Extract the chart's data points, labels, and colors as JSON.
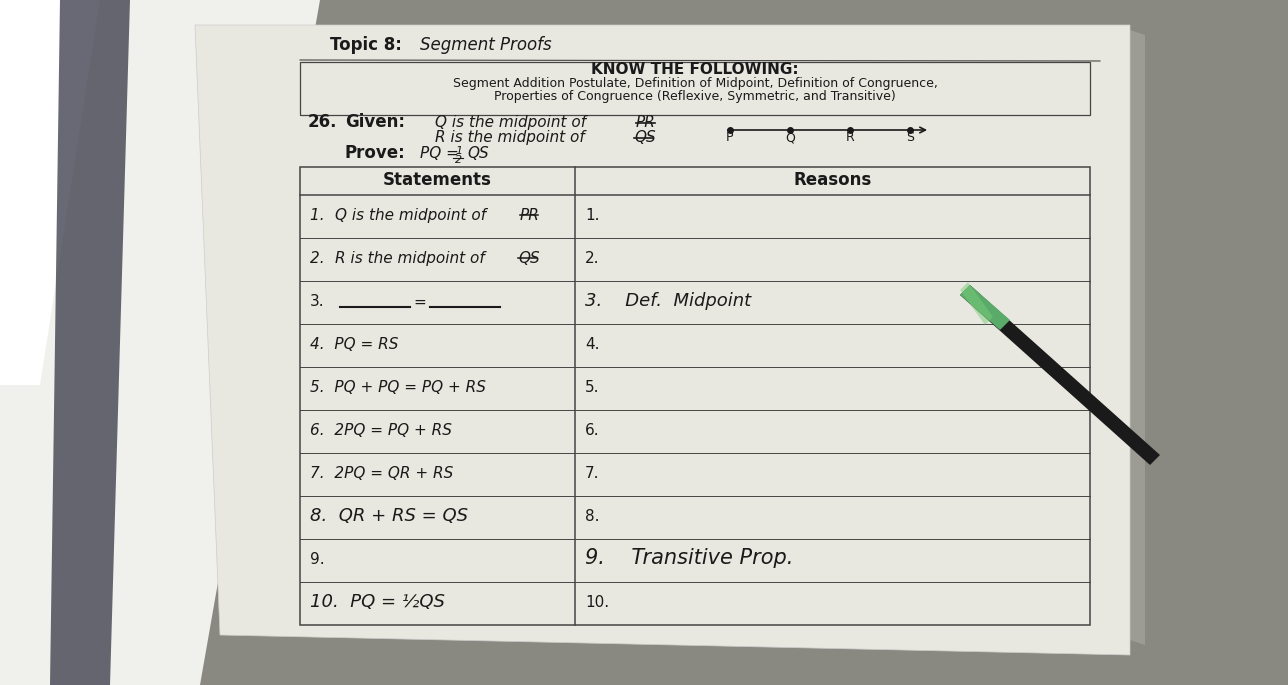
{
  "title_topic": "Topic 8:  Segment Proofs",
  "know_title": "KNOW THE FOLLOWING:",
  "know_body": "Segment Addition Postulate, Definition of Midpoint, Definition of Congruence,\nProperties of Congruence (Reflexive, Symmetric, and Transitive)",
  "given_label": "Given:",
  "given_line1": "Q is the midpoint of ",
  "given_line1_bar": "PR",
  "given_line2": "R is the midpoint of ",
  "given_line2_bar": "QS",
  "prove_label": "Prove:",
  "prove_text": "PQ = ",
  "prove_frac": "1/2",
  "prove_end": "QS",
  "diagram_points": [
    "P",
    "Q",
    "R",
    "S"
  ],
  "col_headers": [
    "Statements",
    "Reasons"
  ],
  "stmt_rows": [
    "1.  Q is the midpoint of PR̅",
    "2.  R is the midpoint of QS̅",
    "3.  ______  =  ______",
    "4.  PQ = RS",
    "5.  PQ + PQ = PQ + RS",
    "6.  2PQ = PQ + RS",
    "7.  2PQ = QR + RS",
    "8.  QR + RS = QS",
    "9.",
    "10.  PQ = ½QS"
  ],
  "reason_rows": [
    "1.",
    "2.",
    "3.    Def.  Midpoint",
    "4.",
    "5.",
    "6.",
    "7.",
    "8.",
    "9.    Transitive Prop.",
    "10."
  ],
  "bg_color": "#8a8a82",
  "paper_color": "#e8e8e0",
  "desk_color": "#7a7a72",
  "line_color": "#444444",
  "text_color": "#1a1a1a"
}
